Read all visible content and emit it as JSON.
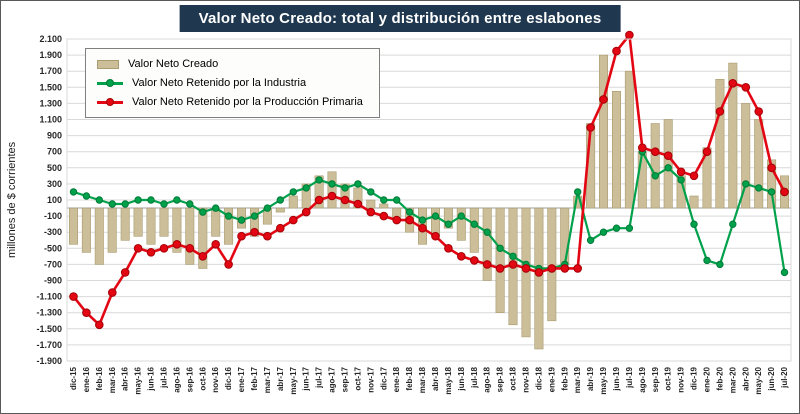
{
  "title": "Valor Neto Creado: total y distribución entre eslabones",
  "y_axis_title": "millones de $ corrientes",
  "colors": {
    "title_bg": "#1F3850",
    "bar": "#CBBE98",
    "bar_border": "#A89B70",
    "green": "#00A14B",
    "green_edge": "#007A38",
    "red": "#E30613",
    "red_edge": "#A50006",
    "grid": "#D9D9D9"
  },
  "legend": [
    {
      "label": "Valor Neto Creado",
      "type": "bar",
      "color": "#CBBE98",
      "edge": "#A89B70"
    },
    {
      "label": "Valor Neto Retenido por la Industria",
      "type": "line",
      "color": "#00A14B",
      "edge": "#007A38"
    },
    {
      "label": "Valor Neto Retenido por la Producción Primaria",
      "type": "line",
      "color": "#E30613",
      "edge": "#A50006"
    }
  ],
  "chart_data": {
    "type": "bar+line combo",
    "title": "Valor Neto Creado: total y distribución entre eslabones",
    "xlabel": "",
    "ylabel": "millones de $ corrientes",
    "ylim": [
      -1900,
      2100
    ],
    "ytick_step": 200,
    "grid": true,
    "legend_position": "top-left-inside",
    "ytick_labels": [
      "2.100",
      "1.900",
      "1.700",
      "1.500",
      "1.300",
      "1.100",
      "900",
      "700",
      "500",
      "300",
      "100",
      "-100",
      "-300",
      "-500",
      "-700",
      "-900",
      "-1.100",
      "-1.300",
      "-1.500",
      "-1.700",
      "-1.900"
    ],
    "categories": [
      "dic-15",
      "ene-16",
      "feb-16",
      "mar-16",
      "abr-16",
      "may-16",
      "jun-16",
      "jul-16",
      "ago-16",
      "sep-16",
      "oct-16",
      "nov-16",
      "dic-16",
      "ene-17",
      "feb-17",
      "mar-17",
      "abr-17",
      "may-17",
      "jun-17",
      "jul-17",
      "ago-17",
      "sep-17",
      "oct-17",
      "nov-17",
      "dic-17",
      "ene-18",
      "feb-18",
      "mar-18",
      "abr-18",
      "may-18",
      "jun-18",
      "jul-18",
      "ago-18",
      "sep-18",
      "oct-18",
      "nov-18",
      "dic-18",
      "ene-19",
      "feb-19",
      "mar-19",
      "abr-19",
      "may-19",
      "jun-19",
      "jul-19",
      "ago-19",
      "sep-19",
      "oct-19",
      "nov-19",
      "dic-19",
      "ene-20",
      "feb-20",
      "mar-20",
      "abr-20",
      "may-20",
      "jun-20",
      "jul-20"
    ],
    "series": [
      {
        "name": "Valor Neto Creado",
        "type": "bar",
        "color": "#CBBE98",
        "border": "#A89B70",
        "values": [
          -450,
          -550,
          -700,
          -550,
          -400,
          -350,
          -450,
          -350,
          -550,
          -700,
          -750,
          -350,
          -450,
          -250,
          -350,
          -200,
          -50,
          150,
          300,
          400,
          450,
          300,
          250,
          100,
          50,
          -150,
          -300,
          -450,
          -350,
          -250,
          -400,
          -550,
          -900,
          -1300,
          -1450,
          -1600,
          -1750,
          -1400,
          -700,
          150,
          1050,
          1900,
          1450,
          1700,
          700,
          1050,
          1100,
          400,
          150,
          750,
          1600,
          1800,
          1300,
          1100,
          600,
          400
        ]
      },
      {
        "name": "Valor Neto Retenido por la Industria",
        "type": "line",
        "color": "#00A14B",
        "marker_edge": "#007A38",
        "line_width": 2.2,
        "marker_r": 3.2,
        "values": [
          200,
          150,
          100,
          50,
          50,
          100,
          100,
          50,
          100,
          50,
          -50,
          0,
          -100,
          -150,
          -100,
          0,
          100,
          200,
          250,
          350,
          300,
          250,
          300,
          200,
          100,
          100,
          -50,
          -150,
          -100,
          -200,
          -100,
          -200,
          -300,
          -500,
          -600,
          -700,
          -750,
          -750,
          -700,
          200,
          -400,
          -300,
          -250,
          -250,
          700,
          400,
          500,
          350,
          -200,
          -650,
          -700,
          -200,
          300,
          250,
          200,
          -800
        ]
      },
      {
        "name": "Valor Neto Retenido por la Producción Primaria",
        "type": "line",
        "color": "#E30613",
        "marker_edge": "#A50006",
        "line_width": 2.6,
        "marker_r": 3.8,
        "values": [
          -1100,
          -1300,
          -1450,
          -1050,
          -800,
          -500,
          -550,
          -500,
          -450,
          -500,
          -600,
          -450,
          -700,
          -350,
          -300,
          -350,
          -250,
          -150,
          -50,
          100,
          150,
          100,
          50,
          -50,
          -100,
          -150,
          -150,
          -250,
          -350,
          -500,
          -600,
          -650,
          -700,
          -750,
          -700,
          -750,
          -800,
          -750,
          -750,
          -750,
          1000,
          1350,
          1950,
          2150,
          750,
          700,
          650,
          450,
          400,
          700,
          1200,
          1550,
          1500,
          1200,
          500,
          200
        ]
      }
    ]
  }
}
